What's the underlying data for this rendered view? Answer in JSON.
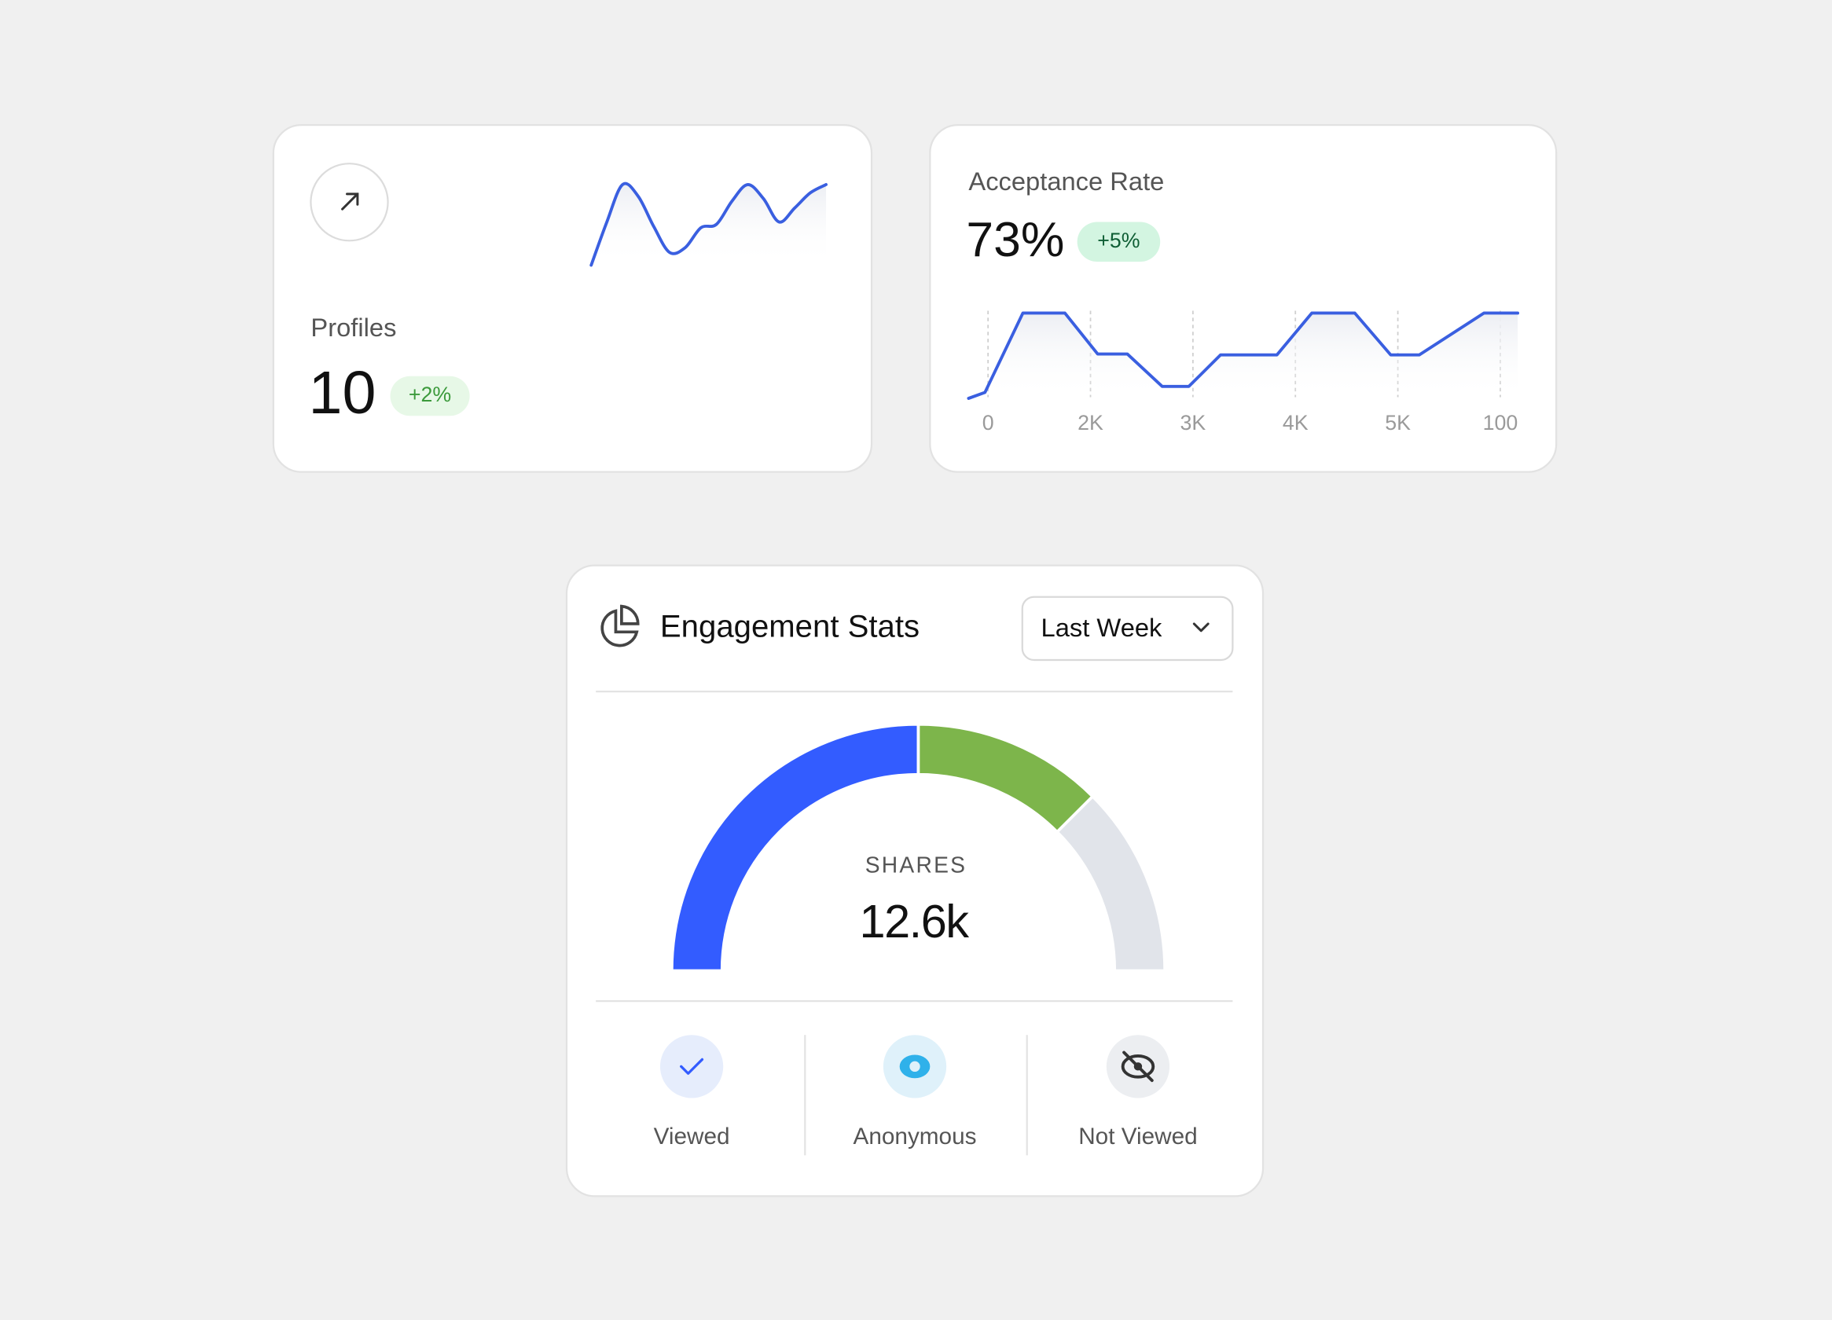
{
  "profiles_card": {
    "label": "Profiles",
    "value": "10",
    "change": "+2%"
  },
  "acceptance_card": {
    "label": "Acceptance Rate",
    "value": "73%",
    "change": "+5%"
  },
  "engagement_card": {
    "title": "Engagement Stats",
    "period": "Last Week",
    "center_label": "SHARES",
    "center_value": "12.6k"
  },
  "chart_data": [
    {
      "type": "line",
      "color": "#3a5fe0",
      "values": [
        3,
        40,
        72,
        62,
        36,
        14,
        18,
        35,
        38,
        58,
        72,
        60,
        40,
        52,
        65,
        72
      ]
    },
    {
      "type": "line",
      "color": "#3a5fe0",
      "grid": true,
      "xlim": [
        -0.19,
        5.17
      ],
      "ylim": [
        0,
        100
      ],
      "xticks": [
        0,
        {
          "value": 1,
          "label": "2K"
        },
        {
          "value": 2,
          "label": "3K"
        },
        {
          "value": 3,
          "label": "4K"
        },
        {
          "value": 4,
          "label": "5K"
        },
        {
          "value": 5,
          "label": "100"
        }
      ],
      "x": [
        -0.19,
        -0.03,
        0.34,
        0.75,
        1.07,
        1.36,
        1.7,
        1.96,
        2.27,
        2.82,
        3.16,
        3.58,
        3.93,
        4.21,
        4.84,
        5.17
      ],
      "values": [
        0,
        7,
        100,
        100,
        52,
        52,
        14,
        14,
        51,
        51,
        100,
        100,
        51,
        51,
        100,
        100
      ]
    },
    {
      "type": "pie",
      "series": [
        {
          "name": "Viewed",
          "color": "#335cff",
          "values": [
            50
          ]
        },
        {
          "name": "Anonymous",
          "color": "#7db54b",
          "values": [
            25
          ]
        },
        {
          "name": "Not Viewed",
          "color": "#e1e4ea",
          "values": [
            25
          ]
        }
      ]
    }
  ]
}
